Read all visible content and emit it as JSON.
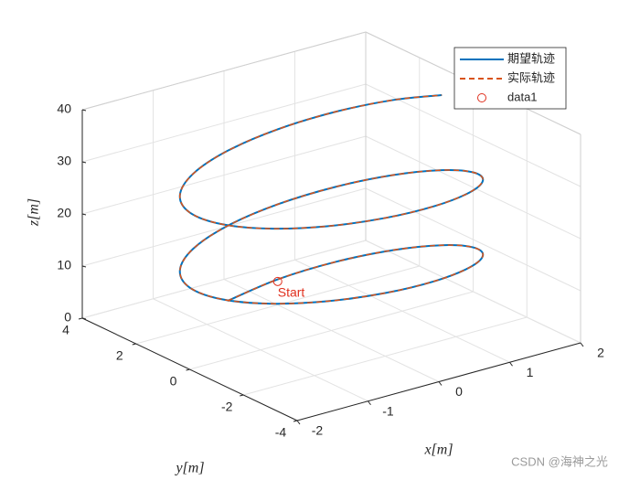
{
  "chart_data": {
    "type": "line3d",
    "xlabel": "x[m]",
    "ylabel": "y[m]",
    "zlabel": "z[m]",
    "xlim": [
      -2,
      2
    ],
    "ylim": [
      -4,
      4
    ],
    "zlim": [
      0,
      40
    ],
    "xticks": [
      -2,
      -1,
      0,
      1,
      2
    ],
    "yticks": [
      -4,
      -2,
      0,
      2,
      4
    ],
    "zticks": [
      0,
      10,
      20,
      30,
      40
    ],
    "grid": true,
    "box": true,
    "legend": "northeast",
    "series": [
      {
        "name": "期望轨迹",
        "color": "#0072bd",
        "style": "solid",
        "x": [
          -0.765,
          0,
          0.765,
          1.414,
          1.848,
          2,
          1.848,
          1.414,
          0.765,
          0,
          -0.765,
          -1.414,
          -1.848,
          -2,
          -1.848,
          -1.414,
          -0.765,
          0,
          0.765,
          1.414,
          1.848,
          2,
          1.848,
          1.414,
          0.765,
          0,
          -0.765,
          -1.414,
          -1.848,
          -2,
          -1.848,
          -1.414,
          -0.765,
          0,
          0.765,
          1.414,
          1.848
        ],
        "y": [
          1.848,
          2,
          1.848,
          1.414,
          0.765,
          0,
          -0.765,
          -1.414,
          -1.848,
          -2,
          -1.848,
          -1.414,
          -0.765,
          0,
          0.765,
          1.414,
          1.848,
          2,
          1.848,
          1.414,
          0.765,
          0,
          -0.765,
          -1.414,
          -1.848,
          -2,
          -1.848,
          -1.414,
          -0.765,
          0,
          0.765,
          1.414,
          1.848,
          2,
          1.848,
          1.414,
          0.765
        ],
        "z": [
          4,
          4.9,
          5.8,
          6.7,
          7.6,
          8.5,
          9.4,
          10.3,
          11.2,
          12.1,
          13,
          13.9,
          14.8,
          15.7,
          16.6,
          17.5,
          18.4,
          19.3,
          20.2,
          21.1,
          22,
          22.9,
          23.8,
          24.7,
          25.6,
          26.5,
          27.4,
          28.3,
          29.2,
          30.1,
          31,
          31.9,
          32.8,
          33.7,
          34.6,
          35.5,
          36.4
        ]
      },
      {
        "name": "实际轨迹",
        "color": "#d95319",
        "style": "dashed",
        "x": [
          -0.765,
          0,
          0.765,
          1.414,
          1.848,
          2,
          1.848,
          1.414,
          0.765,
          0,
          -0.765,
          -1.414,
          -1.848,
          -2,
          -1.848,
          -1.414,
          -0.765,
          0,
          0.765,
          1.414,
          1.848,
          2,
          1.848,
          1.414,
          0.765,
          0,
          -0.765,
          -1.414,
          -1.848,
          -2,
          -1.848,
          -1.414,
          -0.765,
          0,
          0.765,
          1.414,
          1.848
        ],
        "y": [
          1.848,
          2,
          1.848,
          1.414,
          0.765,
          0,
          -0.765,
          -1.414,
          -1.848,
          -2,
          -1.848,
          -1.414,
          -0.765,
          0,
          0.765,
          1.414,
          1.848,
          2,
          1.848,
          1.414,
          0.765,
          0,
          -0.765,
          -1.414,
          -1.848,
          -2,
          -1.848,
          -1.414,
          -0.765,
          0,
          0.765,
          1.414,
          1.848,
          2,
          1.848,
          1.414,
          0.765
        ],
        "z": [
          4,
          4.9,
          5.8,
          6.7,
          7.6,
          8.5,
          9.4,
          10.3,
          11.2,
          12.1,
          13,
          13.9,
          14.8,
          15.7,
          16.6,
          17.5,
          18.4,
          19.3,
          20.2,
          21.1,
          22,
          22.9,
          23.8,
          24.7,
          25.6,
          26.5,
          27.4,
          28.3,
          29.2,
          30.1,
          31,
          31.9,
          32.8,
          33.7,
          34.6,
          35.5,
          36.4
        ]
      },
      {
        "name": "data1",
        "color": "#e0301e",
        "style": "marker",
        "x": [
          0
        ],
        "y": [
          2
        ],
        "z": [
          4.5
        ]
      }
    ],
    "annotations": [
      "Start"
    ],
    "watermark": "CSDN @海神之光"
  }
}
